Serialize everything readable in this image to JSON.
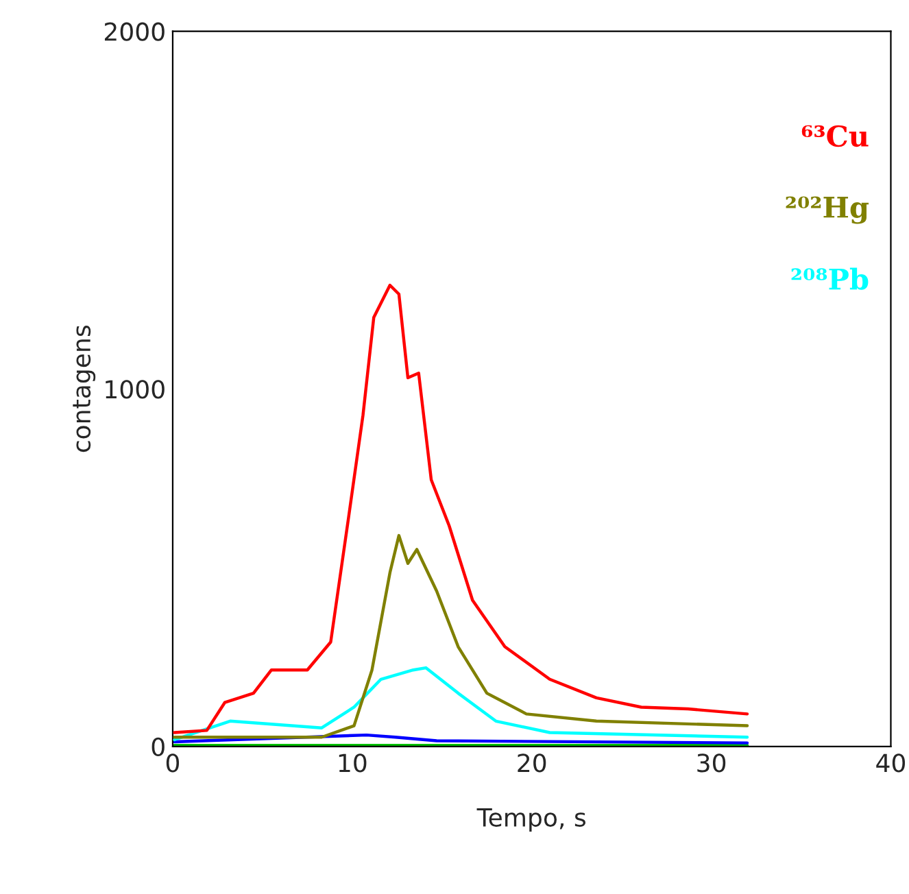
{
  "chart_data": {
    "type": "line",
    "xlabel": "Tempo, s",
    "ylabel": "contagens",
    "xlim": [
      0,
      40
    ],
    "xticks": [
      0,
      10,
      20,
      30,
      40
    ],
    "ylim": [
      0,
      2000
    ],
    "yticks": [
      0,
      1000,
      2000
    ],
    "grid": false,
    "legend": "top right",
    "marker": "none",
    "line_style": "solid",
    "series": [
      {
        "name": "⁶³Cu",
        "color": "#ff0000",
        "x": [
          0.1,
          1.9,
          2.9,
          4.5,
          5.5,
          7.5,
          8.8,
          9.8,
          10.6,
          11.2,
          12.1,
          12.6,
          13.1,
          13.7,
          14.4,
          15.4,
          16.7,
          18.5,
          21.0,
          23.6,
          26.1,
          28.7,
          32.0
        ],
        "values": [
          39,
          45,
          123,
          149,
          214,
          214,
          292,
          642,
          927,
          1200,
          1290,
          1265,
          1031,
          1044,
          746,
          617,
          409,
          279,
          188,
          136,
          110,
          105,
          91
        ]
      },
      {
        "name": "²⁰²Hg",
        "color": "#808000",
        "x": [
          0.1,
          8.3,
          10.1,
          11.1,
          12.1,
          12.6,
          13.1,
          13.6,
          14.7,
          15.9,
          17.5,
          19.7,
          23.6,
          32.0
        ],
        "values": [
          26,
          26,
          58,
          214,
          486,
          590,
          512,
          551,
          435,
          279,
          149,
          91,
          71,
          58
        ]
      },
      {
        "name": "²⁰⁸Pb",
        "color": "#00ffff",
        "x": [
          0.1,
          3.2,
          8.3,
          10.1,
          11.6,
          13.4,
          14.1,
          15.9,
          18.0,
          21.0,
          32.0
        ],
        "values": [
          19,
          71,
          52,
          110,
          188,
          214,
          220,
          149,
          71,
          39,
          26
        ]
      },
      {
        "color": "#0000ff",
        "x": [
          0.1,
          10.8,
          12.4,
          14.7,
          32.0
        ],
        "values": [
          13,
          32,
          26,
          16,
          10
        ]
      },
      {
        "color": "#00c000",
        "x": [
          0.1,
          32.0
        ],
        "values": [
          3,
          3
        ]
      }
    ]
  }
}
